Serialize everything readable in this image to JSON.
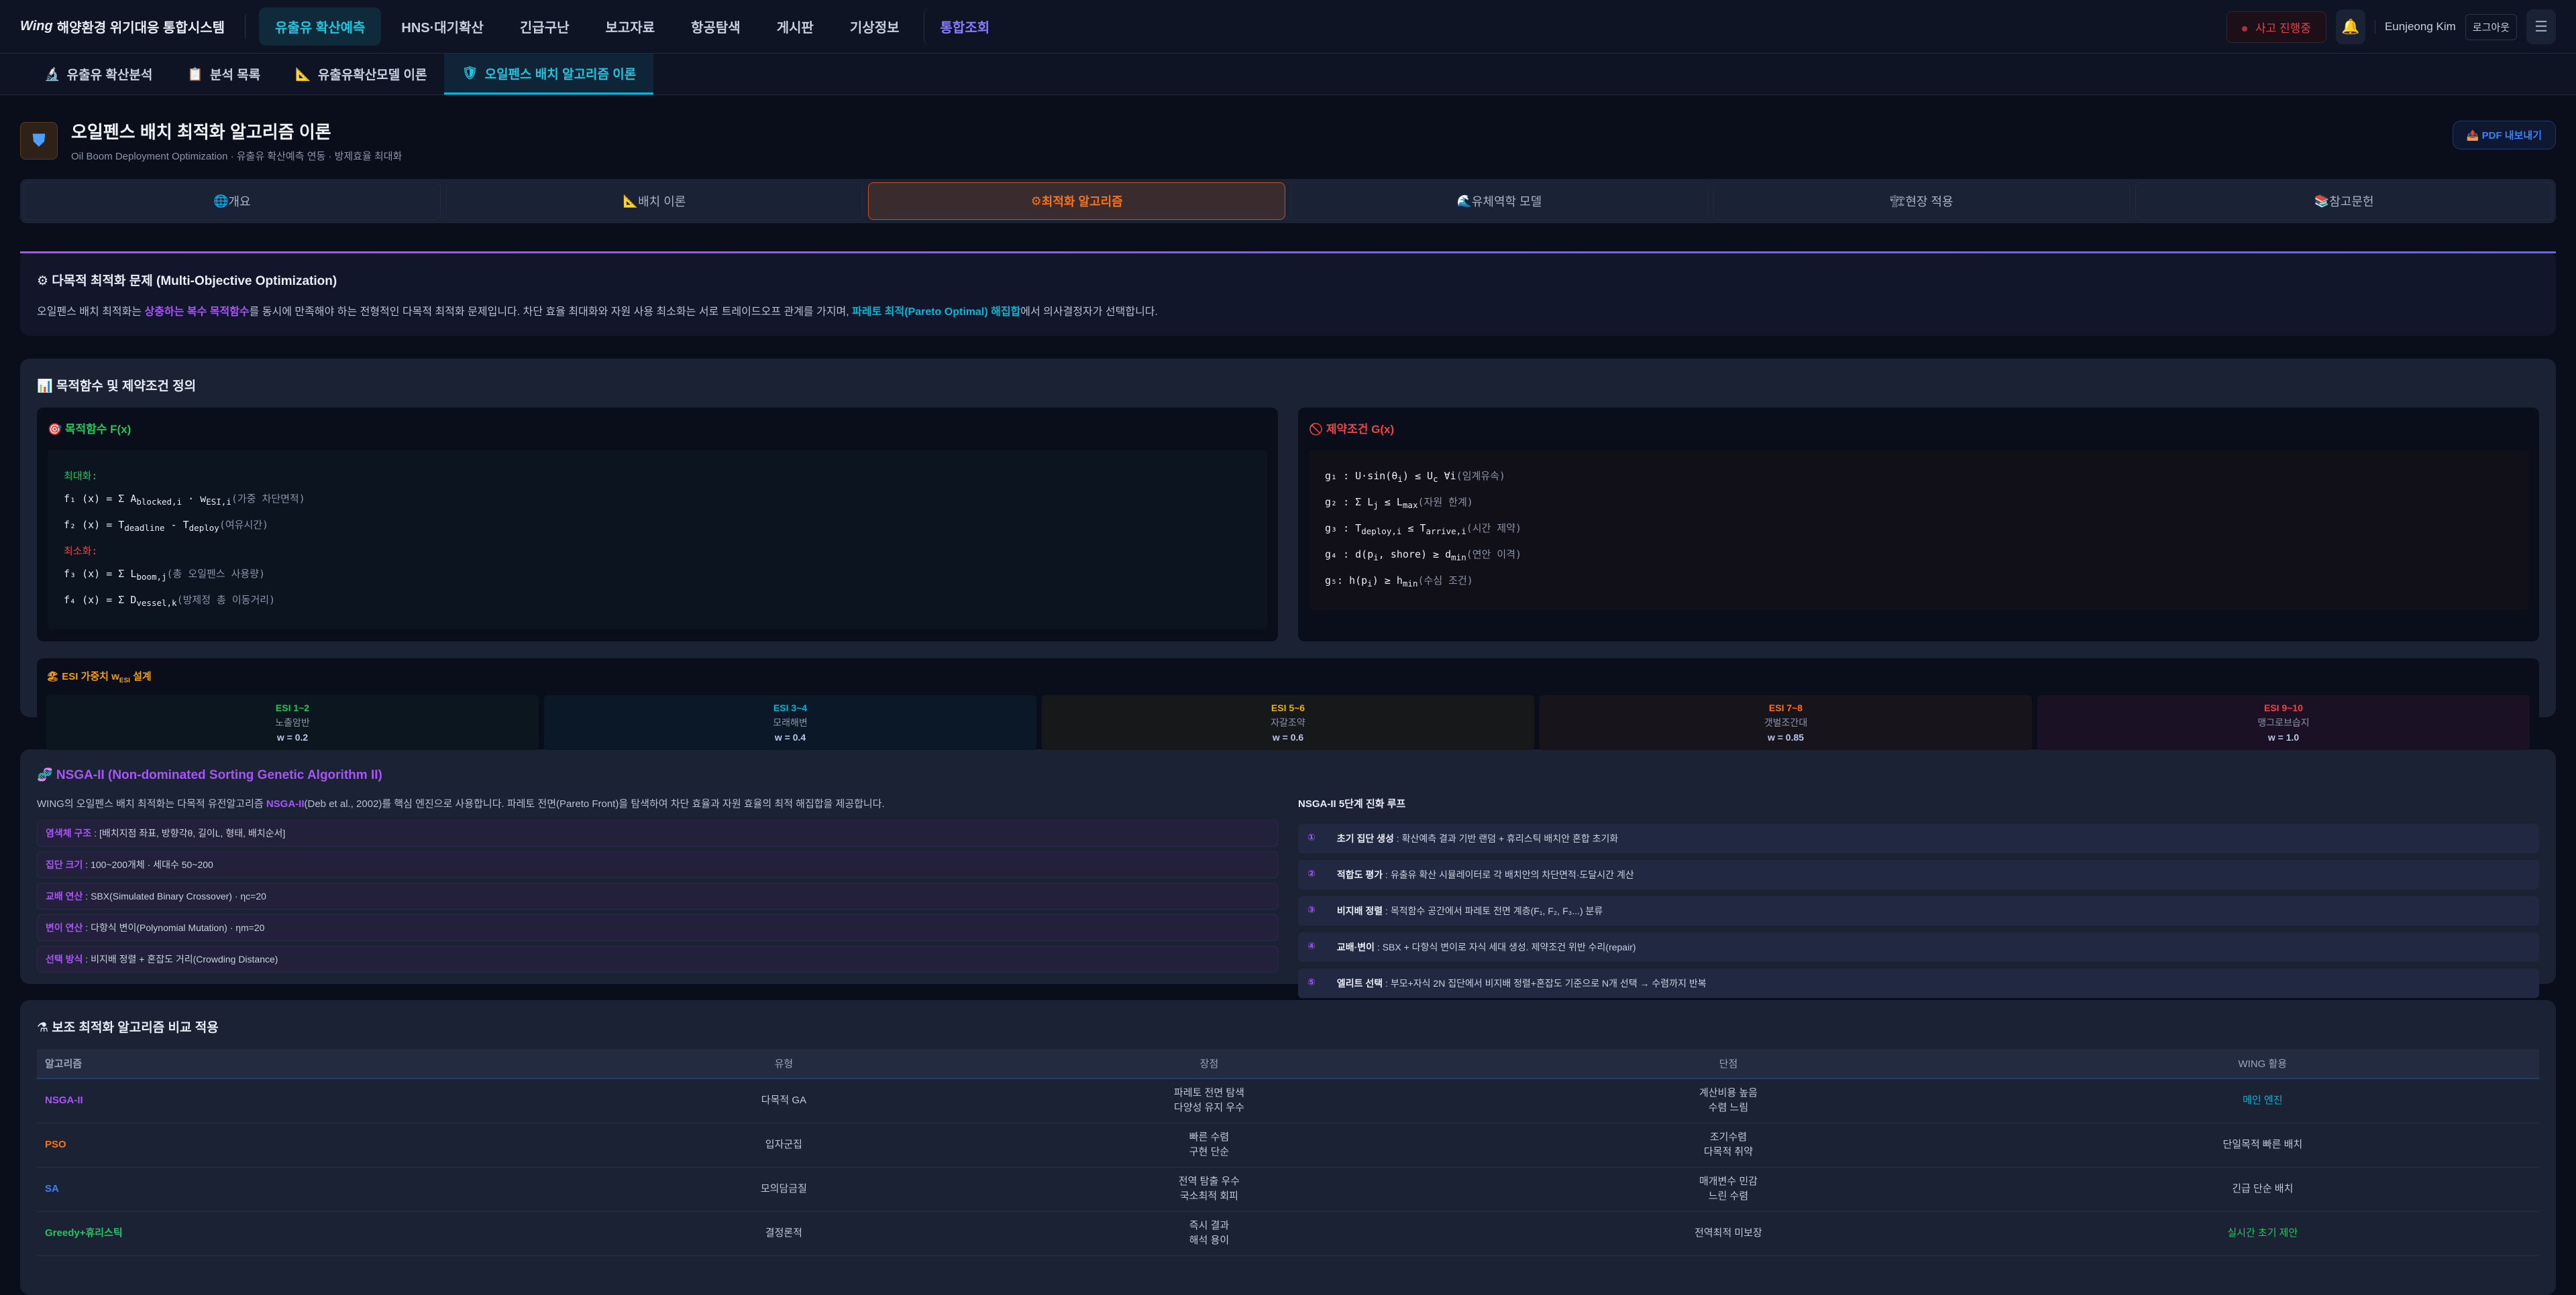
{
  "topnav": {
    "brand_logo": "Wing",
    "brand": "해양환경 위기대응 통합시스템",
    "items": [
      "유출유 확산예측",
      "HNS·대기확산",
      "긴급구난",
      "보고자료",
      "항공탐색",
      "게시판",
      "기상정보",
      "통합조회"
    ],
    "incident": "사고 진행중",
    "user": "Eunjeong Kim",
    "logout": "로그아웃"
  },
  "subnav": [
    {
      "icon": "microscope-icon",
      "g": "🔬",
      "label": "유출유 확산분석"
    },
    {
      "icon": "clipboard-icon",
      "g": "📋",
      "label": "분석 목록"
    },
    {
      "icon": "triangle-ruler-icon",
      "g": "📐",
      "label": "유출유확산모델 이론"
    },
    {
      "icon": "shield-icon",
      "g": "🛡",
      "label": "오일펜스 배치 알고리즘 이론"
    }
  ],
  "header": {
    "title": "오일펜스 배치 최적화 알고리즘 이론",
    "subtitle": "Oil Boom Deployment Optimization · 유출유 확산예측 연동 · 방제효율 최대화",
    "pdf": "PDF 내보내기"
  },
  "tabs": [
    {
      "g": "🌐",
      "label": "개요"
    },
    {
      "g": "📐",
      "label": "배치 이론"
    },
    {
      "g": "⚙",
      "label": "최적화 알고리즘"
    },
    {
      "g": "🌊",
      "label": "유체역학 모델"
    },
    {
      "g": "🏗",
      "label": "현장 적용"
    },
    {
      "g": "📚",
      "label": "참고문헌"
    }
  ],
  "moo": {
    "title": "⚙ 다목적 최적화 문제 (Multi-Objective Optimization)",
    "t1": "오일펜스 배치 최적화는 ",
    "h1": "상충하는 복수 목적함수",
    "t2": "를 동시에 만족해야 하는 전형적인 다목적 최적화 문제입니다. 차단 효율 최대화와 자원 사용 최소화는 서로 트레이드오프 관계를 가지며, ",
    "h2": "파레토 최적(Pareto Optimal) 해집합",
    "t3": "에서 의사결정자가 선택합니다."
  },
  "defs": {
    "title": "📊 목적함수 및 제약조건 정의",
    "obj": {
      "title": "🎯 목적함수 F(x)",
      "max": "최대화:",
      "min": "최소화:",
      "lines": [
        {
          "f": "f₁ (x) = Σ A",
          "s": "blocked,i",
          "f2": " · w",
          "s2": "ESI,i",
          "c": "(가중 차단면적)"
        },
        {
          "f": "f₂ (x) = T",
          "s": "deadline",
          "f2": " - T",
          "s2": "deploy",
          "c": "(여유시간)"
        },
        {
          "f": "f₃ (x) = Σ L",
          "s": "boom,j",
          "f2": "",
          "s2": "",
          "c": "(총 오일펜스 사용량)"
        },
        {
          "f": "f₄ (x) = Σ D",
          "s": "vessel,k",
          "f2": "",
          "s2": "",
          "c": "(방제정 총 이동거리)"
        }
      ]
    },
    "con": {
      "title": "🚫 제약조건 G(x)",
      "lines": [
        {
          "f": "g₁ : U·sin(θ",
          "s": "i",
          "f2": ") ≤ U",
          "s2": "c",
          "f3": " ∀i",
          "c": "(임계유속)"
        },
        {
          "f": "g₂ : Σ L",
          "s": "j",
          "f2": " ≤ L",
          "s2": "max",
          "f3": "",
          "c": "(자원 한계)"
        },
        {
          "f": "g₃ : T",
          "s": "deploy,i",
          "f2": " ≤ T",
          "s2": "arrive,i",
          "f3": "",
          "c": "(시간 제약)"
        },
        {
          "f": "g₄ : d(p",
          "s": "i",
          "f2": ", shore) ≥ d",
          "s2": "min",
          "f3": "",
          "c": "(연안 이격)"
        },
        {
          "f": "g₅: h(p",
          "s": "i",
          "f2": ") ≥ h",
          "s2": "min",
          "f3": "",
          "c": "(수심 조건)"
        }
      ]
    },
    "esi": {
      "title": "🏖 ESI 가중치 w",
      "title_sub": "ESI",
      "title_end": " 설계",
      "items": [
        {
          "level": "ESI 1~2",
          "desc": "노출암반",
          "w": "w = 0.2",
          "color": "#22c55e",
          "bg": "#0c161e"
        },
        {
          "level": "ESI 3~4",
          "desc": "모래해변",
          "w": "w = 0.4",
          "color": "#06b6d4",
          "bg": "#0a1828"
        },
        {
          "level": "ESI 5~6",
          "desc": "자갈조약",
          "w": "w = 0.6",
          "color": "#eab308",
          "bg": "#16181a"
        },
        {
          "level": "ESI 7~8",
          "desc": "갯벌조간대",
          "w": "w = 0.85",
          "color": "#f97316",
          "bg": "#18141c"
        },
        {
          "level": "ESI 9~10",
          "desc": "맹그로브습지",
          "w": "w = 1.0",
          "color": "#ef4444",
          "bg": "#1a1224"
        }
      ]
    }
  },
  "nsga": {
    "title": "🧬 NSGA-II (Non-dominated Sorting Genetic Algorithm II)",
    "t1": "WING의 오일펜스 배치 최적화는 다목적 유전알고리즘 ",
    "h1": "NSGA-II",
    "t2": "(Deb et al., 2002)를 핵심 엔진으로 사용합니다. 파레토 전면(Pareto Front)을 탐색하여 차단 효율과 자원 효율의 최적 해집합을 제공합니다.",
    "params": [
      {
        "k": "염색체 구조",
        "v": " : [배치지점 좌표, 방향각θ, 길이L, 형태, 배치순서]"
      },
      {
        "k": "집단 크기",
        "v": " : 100~200개체 · 세대수 50~200"
      },
      {
        "k": "교배 연산",
        "v": " : SBX(Simulated Binary Crossover) · ηc=20"
      },
      {
        "k": "변이 연산",
        "v": " : 다항식 변이(Polynomial Mutation) · ηm=20"
      },
      {
        "k": "선택 방식",
        "v": " : 비지배 정렬 + 혼잡도 거리(Crowding Distance)"
      }
    ],
    "loop_title": "NSGA-II 5단계 진화 루프",
    "steps": [
      {
        "n": "①",
        "k": "초기 집단 생성",
        "v": " : 확산예측 결과 기반 랜덤 + 휴리스틱 배치안 혼합 초기화"
      },
      {
        "n": "②",
        "k": "적합도 평가",
        "v": " : 유출유 확산 시뮬레이터로 각 배치안의 차단면적·도달시간 계산"
      },
      {
        "n": "③",
        "k": "비지배 정렬",
        "v": " : 목적함수 공간에서 파레토 전면 계층(F₁, F₂, F₃...) 분류"
      },
      {
        "n": "④",
        "k": "교배·변이",
        "v": " : SBX + 다항식 변이로 자식 세대 생성. 제약조건 위반 수리(repair)"
      },
      {
        "n": "⑤",
        "k": "엘리트 선택",
        "v": " : 부모+자식 2N 집단에서 비지배 정렬+혼잡도 기준으로 N개 선택 → 수렴까지 반복"
      }
    ]
  },
  "compare": {
    "title": "⚗ 보조 최적화 알고리즘 비교 적용",
    "headers": [
      "알고리즘",
      "유형",
      "장점",
      "단점",
      "WING 활용"
    ],
    "rows": [
      {
        "name": "NSGA-II",
        "color": "#a855f7",
        "type": "다목적 GA",
        "pros": [
          "파레토 전면 탐색",
          "다양성 유지 우수"
        ],
        "cons": [
          "계산비용 높음",
          "수렴 느림"
        ],
        "use": "메인 엔진",
        "use_color": "#06b6d4"
      },
      {
        "name": "PSO",
        "color": "#f97316",
        "type": "입자군집",
        "pros": [
          "빠른 수렴",
          "구현 단순"
        ],
        "cons": [
          "조기수렴",
          "다목적 취약"
        ],
        "use": "단일목적 빠른 배치",
        "use_color": "#c0c8d8"
      },
      {
        "name": "SA",
        "color": "#3b82f6",
        "type": "모의담금질",
        "pros": [
          "전역 탐출 우수",
          "국소최적 회피"
        ],
        "cons": [
          "매개변수 민감",
          "느린 수렴"
        ],
        "use": "긴급 단순 배치",
        "use_color": "#c0c8d8"
      },
      {
        "name": "Greedy+휴리스틱",
        "color": "#22c55e",
        "type": "결정론적",
        "pros": [
          "즉시 결과",
          "해석 용이"
        ],
        "cons": [
          "전역최적 미보장"
        ],
        "use": "실시간 초기 제안",
        "use_color": "#22c55e"
      }
    ]
  }
}
